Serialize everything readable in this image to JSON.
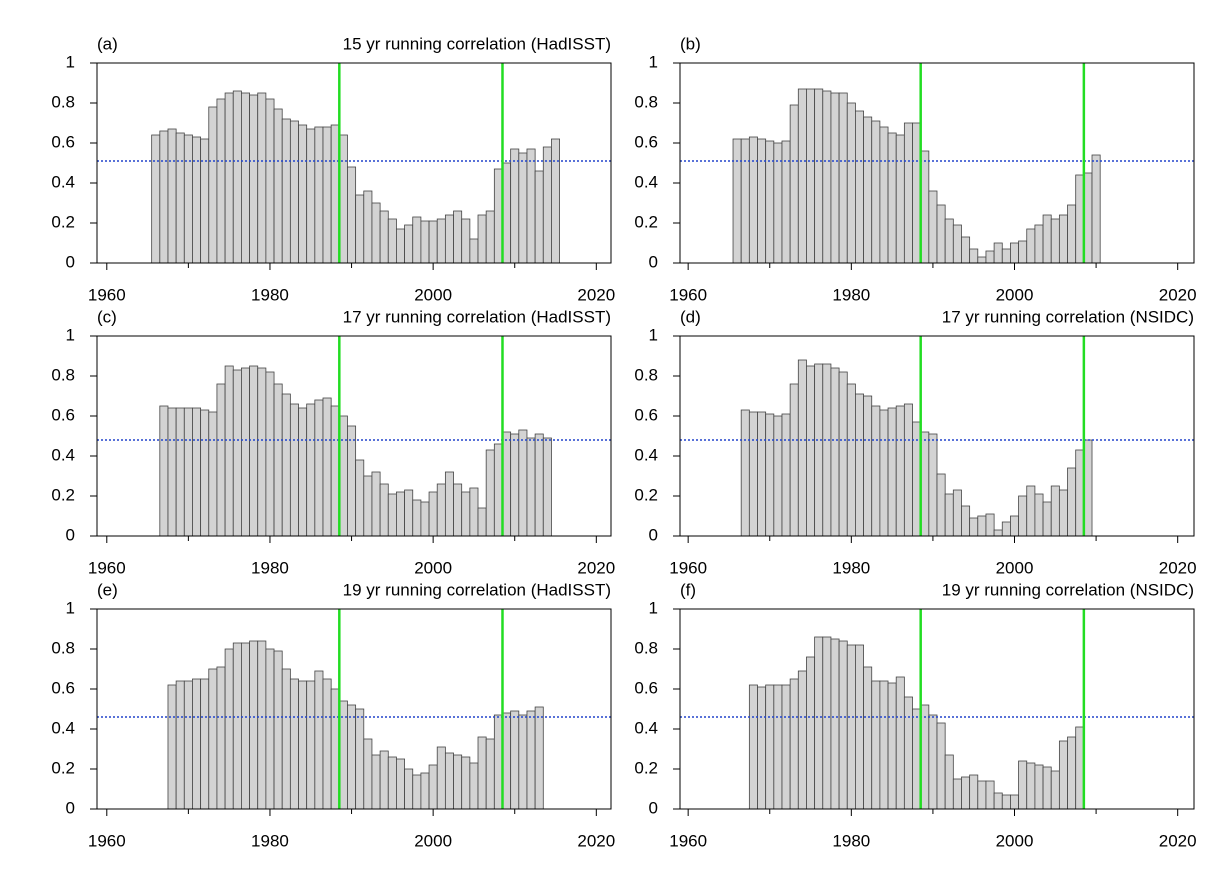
{
  "chart_data": [
    {
      "type": "bar",
      "panel_label": "(a)",
      "title": "15 yr running correlation (HadISST)",
      "x": [
        1966,
        1967,
        1968,
        1969,
        1970,
        1971,
        1972,
        1973,
        1974,
        1975,
        1976,
        1977,
        1978,
        1979,
        1980,
        1981,
        1982,
        1983,
        1984,
        1985,
        1986,
        1987,
        1988,
        1989,
        1990,
        1991,
        1992,
        1993,
        1994,
        1995,
        1996,
        1997,
        1998,
        1999,
        2000,
        2001,
        2002,
        2003,
        2004,
        2005,
        2006,
        2007,
        2008,
        2009,
        2010,
        2011,
        2012,
        2013,
        2014,
        2015
      ],
      "values": [
        0.64,
        0.66,
        0.67,
        0.65,
        0.64,
        0.63,
        0.62,
        0.78,
        0.82,
        0.85,
        0.86,
        0.85,
        0.84,
        0.85,
        0.82,
        0.77,
        0.72,
        0.71,
        0.69,
        0.67,
        0.68,
        0.68,
        0.69,
        0.64,
        0.48,
        0.34,
        0.36,
        0.3,
        0.26,
        0.22,
        0.17,
        0.19,
        0.23,
        0.21,
        0.21,
        0.22,
        0.24,
        0.26,
        0.22,
        0.12,
        0.24,
        0.26,
        0.47,
        0.5,
        0.57,
        0.55,
        0.57,
        0.46,
        0.58,
        0.62
      ],
      "color": "#d3d3d3",
      "xlim": [
        1958.8,
        2021.8
      ],
      "ylim": [
        0,
        1
      ],
      "xticks": [
        1960,
        1980,
        2000,
        2020
      ],
      "xminor_ticks": [
        1970,
        1990,
        2010
      ],
      "yticks": [
        0,
        0.2,
        0.4,
        0.6,
        0.8,
        1
      ],
      "vlines": [
        1988.5,
        2008.5
      ],
      "vline_color": "#22dd22",
      "threshold": 0.51,
      "threshold_color": "#2244cc"
    },
    {
      "type": "bar",
      "panel_label": "(b)",
      "x": [
        1966,
        1967,
        1968,
        1969,
        1970,
        1971,
        1972,
        1973,
        1974,
        1975,
        1976,
        1977,
        1978,
        1979,
        1980,
        1981,
        1982,
        1983,
        1984,
        1985,
        1986,
        1987,
        1988,
        1989,
        1990,
        1991,
        1992,
        1993,
        1994,
        1995,
        1996,
        1997,
        1998,
        1999,
        2000,
        2001,
        2002,
        2003,
        2004,
        2005,
        2006,
        2007,
        2008,
        2009,
        2010
      ],
      "values": [
        0.62,
        0.62,
        0.63,
        0.62,
        0.61,
        0.6,
        0.61,
        0.79,
        0.87,
        0.87,
        0.87,
        0.86,
        0.85,
        0.85,
        0.8,
        0.76,
        0.73,
        0.71,
        0.68,
        0.65,
        0.64,
        0.7,
        0.7,
        0.56,
        0.36,
        0.29,
        0.22,
        0.19,
        0.13,
        0.07,
        0.03,
        0.06,
        0.1,
        0.07,
        0.1,
        0.11,
        0.17,
        0.19,
        0.24,
        0.22,
        0.24,
        0.29,
        0.44,
        0.45,
        0.54
      ],
      "color": "#d3d3d3",
      "xlim": [
        1959.0,
        2022.0
      ],
      "ylim": [
        0,
        1
      ],
      "xticks": [
        1960,
        1980,
        2000,
        2020
      ],
      "xminor_ticks": [
        1970,
        1990,
        2010
      ],
      "yticks": [
        0,
        0.2,
        0.4,
        0.6,
        0.8,
        1
      ],
      "vlines": [
        1988.5,
        2008.5
      ],
      "vline_color": "#22dd22",
      "threshold": 0.51,
      "threshold_color": "#2244cc"
    },
    {
      "type": "bar",
      "panel_label": "(c)",
      "title": "17 yr running correlation (HadISST)",
      "x": [
        1967,
        1968,
        1969,
        1970,
        1971,
        1972,
        1973,
        1974,
        1975,
        1976,
        1977,
        1978,
        1979,
        1980,
        1981,
        1982,
        1983,
        1984,
        1985,
        1986,
        1987,
        1988,
        1989,
        1990,
        1991,
        1992,
        1993,
        1994,
        1995,
        1996,
        1997,
        1998,
        1999,
        2000,
        2001,
        2002,
        2003,
        2004,
        2005,
        2006,
        2007,
        2008,
        2009,
        2010,
        2011,
        2012,
        2013,
        2014
      ],
      "values": [
        0.65,
        0.64,
        0.64,
        0.64,
        0.64,
        0.63,
        0.62,
        0.76,
        0.85,
        0.83,
        0.84,
        0.85,
        0.84,
        0.82,
        0.76,
        0.71,
        0.66,
        0.64,
        0.66,
        0.68,
        0.69,
        0.65,
        0.6,
        0.55,
        0.38,
        0.3,
        0.32,
        0.26,
        0.21,
        0.22,
        0.23,
        0.18,
        0.17,
        0.22,
        0.26,
        0.32,
        0.26,
        0.22,
        0.24,
        0.14,
        0.43,
        0.46,
        0.52,
        0.51,
        0.53,
        0.49,
        0.51,
        0.49
      ],
      "color": "#d3d3d3",
      "xlim": [
        1958.8,
        2021.8
      ],
      "ylim": [
        0,
        1
      ],
      "xticks": [
        1960,
        1980,
        2000,
        2020
      ],
      "xminor_ticks": [
        1970,
        1990,
        2010
      ],
      "yticks": [
        0,
        0.2,
        0.4,
        0.6,
        0.8,
        1
      ],
      "vlines": [
        1988.5,
        2008.5
      ],
      "vline_color": "#22dd22",
      "threshold": 0.48,
      "threshold_color": "#2244cc"
    },
    {
      "type": "bar",
      "panel_label": "(d)",
      "title": "17 yr running correlation (NSIDC)",
      "x": [
        1967,
        1968,
        1969,
        1970,
        1971,
        1972,
        1973,
        1974,
        1975,
        1976,
        1977,
        1978,
        1979,
        1980,
        1981,
        1982,
        1983,
        1984,
        1985,
        1986,
        1987,
        1988,
        1989,
        1990,
        1991,
        1992,
        1993,
        1994,
        1995,
        1996,
        1997,
        1998,
        1999,
        2000,
        2001,
        2002,
        2003,
        2004,
        2005,
        2006,
        2007,
        2008,
        2009
      ],
      "values": [
        0.63,
        0.62,
        0.62,
        0.61,
        0.6,
        0.61,
        0.76,
        0.88,
        0.85,
        0.86,
        0.86,
        0.84,
        0.82,
        0.76,
        0.71,
        0.7,
        0.65,
        0.63,
        0.64,
        0.65,
        0.66,
        0.57,
        0.52,
        0.51,
        0.31,
        0.21,
        0.23,
        0.15,
        0.09,
        0.1,
        0.11,
        0.03,
        0.07,
        0.1,
        0.2,
        0.25,
        0.21,
        0.17,
        0.25,
        0.23,
        0.34,
        0.43,
        0.48
      ],
      "color": "#d3d3d3",
      "xlim": [
        1959.0,
        2022.0
      ],
      "ylim": [
        0,
        1
      ],
      "xticks": [
        1960,
        1980,
        2000,
        2020
      ],
      "xminor_ticks": [
        1970,
        1990,
        2010
      ],
      "yticks": [
        0,
        0.2,
        0.4,
        0.6,
        0.8,
        1
      ],
      "vlines": [
        1988.5,
        2008.5
      ],
      "vline_color": "#22dd22",
      "threshold": 0.48,
      "threshold_color": "#2244cc"
    },
    {
      "type": "bar",
      "panel_label": "(e)",
      "title": "19 yr running correlation (HadISST)",
      "x": [
        1968,
        1969,
        1970,
        1971,
        1972,
        1973,
        1974,
        1975,
        1976,
        1977,
        1978,
        1979,
        1980,
        1981,
        1982,
        1983,
        1984,
        1985,
        1986,
        1987,
        1988,
        1989,
        1990,
        1991,
        1992,
        1993,
        1994,
        1995,
        1996,
        1997,
        1998,
        1999,
        2000,
        2001,
        2002,
        2003,
        2004,
        2005,
        2006,
        2007,
        2008,
        2009,
        2010,
        2011,
        2012,
        2013
      ],
      "values": [
        0.62,
        0.64,
        0.64,
        0.65,
        0.65,
        0.7,
        0.71,
        0.8,
        0.83,
        0.83,
        0.84,
        0.84,
        0.8,
        0.79,
        0.7,
        0.65,
        0.64,
        0.64,
        0.69,
        0.65,
        0.6,
        0.54,
        0.52,
        0.5,
        0.35,
        0.27,
        0.29,
        0.26,
        0.25,
        0.2,
        0.17,
        0.18,
        0.22,
        0.31,
        0.28,
        0.27,
        0.26,
        0.23,
        0.36,
        0.35,
        0.47,
        0.48,
        0.49,
        0.47,
        0.49,
        0.51
      ],
      "color": "#d3d3d3",
      "xlim": [
        1958.8,
        2021.8
      ],
      "ylim": [
        0,
        1
      ],
      "xticks": [
        1960,
        1980,
        2000,
        2020
      ],
      "xminor_ticks": [
        1970,
        1990,
        2010
      ],
      "yticks": [
        0,
        0.2,
        0.4,
        0.6,
        0.8,
        1
      ],
      "vlines": [
        1988.5,
        2008.5
      ],
      "vline_color": "#22dd22",
      "threshold": 0.46,
      "threshold_color": "#2244cc"
    },
    {
      "type": "bar",
      "panel_label": "(f)",
      "title": "19 yr running correlation (NSIDC)",
      "x": [
        1968,
        1969,
        1970,
        1971,
        1972,
        1973,
        1974,
        1975,
        1976,
        1977,
        1978,
        1979,
        1980,
        1981,
        1982,
        1983,
        1984,
        1985,
        1986,
        1987,
        1988,
        1989,
        1990,
        1991,
        1992,
        1993,
        1994,
        1995,
        1996,
        1997,
        1998,
        1999,
        2000,
        2001,
        2002,
        2003,
        2004,
        2005,
        2006,
        2007,
        2008
      ],
      "values": [
        0.62,
        0.61,
        0.62,
        0.62,
        0.62,
        0.65,
        0.69,
        0.76,
        0.86,
        0.86,
        0.85,
        0.84,
        0.82,
        0.82,
        0.71,
        0.64,
        0.64,
        0.63,
        0.66,
        0.56,
        0.5,
        0.52,
        0.47,
        0.43,
        0.27,
        0.15,
        0.16,
        0.17,
        0.14,
        0.14,
        0.08,
        0.07,
        0.07,
        0.24,
        0.23,
        0.22,
        0.21,
        0.19,
        0.34,
        0.36,
        0.41
      ],
      "color": "#d3d3d3",
      "xlim": [
        1959.0,
        2022.0
      ],
      "ylim": [
        0,
        1
      ],
      "xticks": [
        1960,
        1980,
        2000,
        2020
      ],
      "xminor_ticks": [
        1970,
        1990,
        2010
      ],
      "yticks": [
        0,
        0.2,
        0.4,
        0.6,
        0.8,
        1
      ],
      "vlines": [
        1988.5,
        2008.5
      ],
      "vline_color": "#22dd22",
      "threshold": 0.46,
      "threshold_color": "#2244cc"
    }
  ]
}
